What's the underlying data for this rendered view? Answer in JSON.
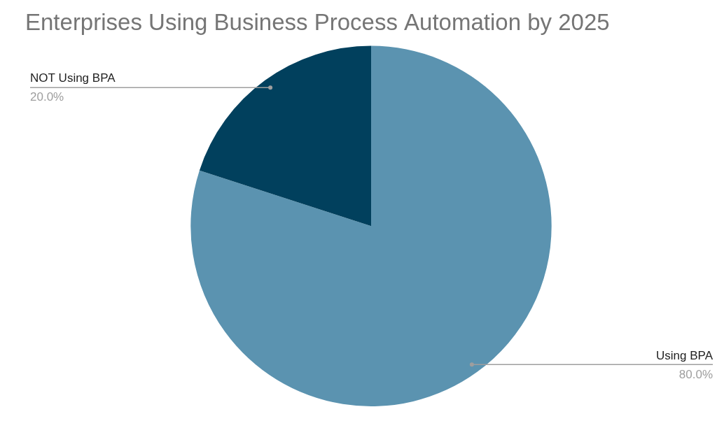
{
  "chart_data": {
    "type": "pie",
    "title": "Enterprises Using Business Process Automation by 2025",
    "categories": [
      "Using BPA",
      "NOT Using BPA"
    ],
    "values": [
      80,
      20
    ],
    "value_labels": [
      "80.0%",
      "20.0%"
    ],
    "colors": [
      "#5b93b0",
      "#01405d"
    ],
    "data_labels": true
  }
}
